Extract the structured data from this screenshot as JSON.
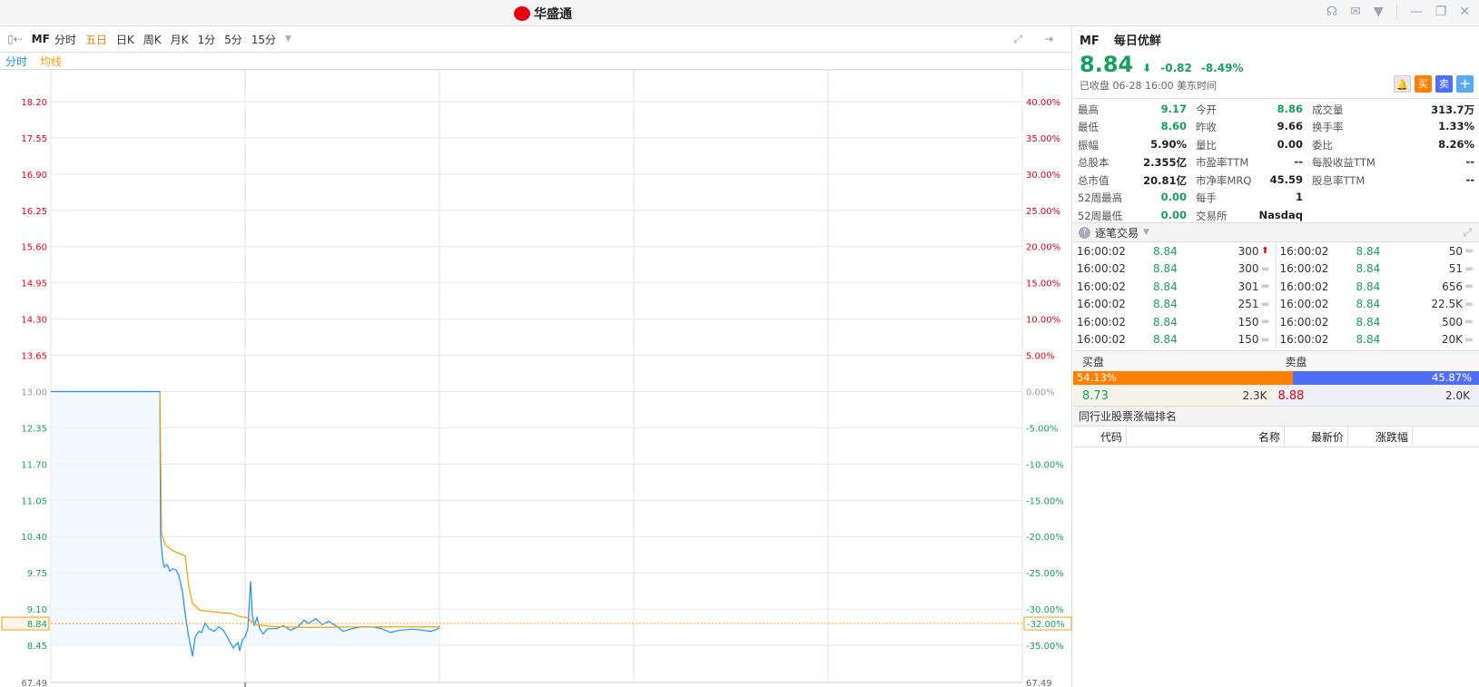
{
  "app": {
    "logo_text": "华盛通",
    "icons": [
      "headset-icon",
      "mail-icon",
      "shirt-icon",
      "minimize-icon",
      "restore-icon",
      "close-icon"
    ]
  },
  "toolbar": {
    "code": "MF",
    "tabs": [
      "分时",
      "五日",
      "日K",
      "周K",
      "月K",
      "1分",
      "5分",
      "15分"
    ],
    "active": "五日"
  },
  "legend": {
    "price": "分时",
    "avg": "均线"
  },
  "colors": {
    "up": "#e60012",
    "down": "#17a05d",
    "price_line": "#1890ff",
    "avg_line": "#f5a000",
    "buy": "#ff8000",
    "sell": "#4f6ef7"
  },
  "chart_data": {
    "type": "line",
    "days": 5,
    "left_ticks": [
      "18.20",
      "17.55",
      "16.90",
      "16.25",
      "15.60",
      "14.95",
      "14.30",
      "13.65",
      "13.00",
      "12.35",
      "11.70",
      "11.05",
      "10.40",
      "9.75",
      "9.10",
      "8.45"
    ],
    "right_ticks": [
      "40.00%",
      "35.00%",
      "30.00%",
      "25.00%",
      "20.00%",
      "15.00%",
      "10.00%",
      "5.00%",
      "0.00%",
      "-5.00%",
      "-10.00%",
      "-15.00%",
      "-20.00%",
      "-25.00%",
      "-30.00%",
      "-35.00%"
    ],
    "ylim": [
      8.45,
      18.2
    ],
    "base": 13.0,
    "current": {
      "price": "8.84",
      "pct": "-32.00%",
      "value": 8.84
    },
    "volume_label_left": "67.49",
    "volume_label_right": "67.49",
    "series": [
      {
        "name": "分时",
        "points": [
          [
            0,
            13.0
          ],
          [
            0.561,
            13.0
          ],
          [
            0.565,
            10.4
          ],
          [
            0.575,
            10.0
          ],
          [
            0.584,
            9.85
          ],
          [
            0.598,
            9.9
          ],
          [
            0.612,
            9.78
          ],
          [
            0.626,
            9.82
          ],
          [
            0.645,
            9.8
          ],
          [
            0.659,
            9.7
          ],
          [
            0.678,
            9.4
          ],
          [
            0.692,
            9.0
          ],
          [
            0.71,
            8.6
          ],
          [
            0.729,
            8.25
          ],
          [
            0.743,
            8.6
          ],
          [
            0.762,
            8.7
          ],
          [
            0.776,
            8.68
          ],
          [
            0.794,
            8.85
          ],
          [
            0.813,
            8.75
          ],
          [
            0.841,
            8.7
          ],
          [
            0.864,
            8.78
          ],
          [
            0.888,
            8.72
          ],
          [
            0.916,
            8.55
          ],
          [
            0.939,
            8.4
          ],
          [
            0.963,
            8.5
          ],
          [
            0.972,
            8.35
          ],
          [
            0.986,
            8.55
          ],
          [
            1.0,
            8.6
          ],
          [
            1.014,
            8.75
          ],
          [
            1.028,
            9.6
          ],
          [
            1.037,
            9.0
          ],
          [
            1.047,
            8.8
          ],
          [
            1.061,
            8.95
          ],
          [
            1.075,
            8.75
          ],
          [
            1.093,
            8.65
          ],
          [
            1.112,
            8.74
          ],
          [
            1.131,
            8.75
          ],
          [
            1.164,
            8.75
          ],
          [
            1.196,
            8.8
          ],
          [
            1.234,
            8.72
          ],
          [
            1.271,
            8.78
          ],
          [
            1.304,
            8.9
          ],
          [
            1.327,
            8.84
          ],
          [
            1.364,
            8.93
          ],
          [
            1.397,
            8.82
          ],
          [
            1.43,
            8.88
          ],
          [
            1.467,
            8.8
          ],
          [
            1.505,
            8.7
          ],
          [
            1.551,
            8.75
          ],
          [
            1.598,
            8.78
          ],
          [
            1.654,
            8.78
          ],
          [
            1.701,
            8.75
          ],
          [
            1.748,
            8.68
          ],
          [
            1.794,
            8.72
          ],
          [
            1.864,
            8.74
          ],
          [
            1.911,
            8.72
          ],
          [
            1.958,
            8.7
          ],
          [
            1.995,
            8.75
          ],
          [
            2.0,
            8.8
          ]
        ]
      },
      {
        "name": "均线",
        "points": [
          [
            0.561,
            13.0
          ],
          [
            0.57,
            10.45
          ],
          [
            0.589,
            10.25
          ],
          [
            0.626,
            10.15
          ],
          [
            0.692,
            10.05
          ],
          [
            0.71,
            9.5
          ],
          [
            0.729,
            9.2
          ],
          [
            0.766,
            9.08
          ],
          [
            0.86,
            9.04
          ],
          [
            0.93,
            9.02
          ],
          [
            0.977,
            8.96
          ],
          [
            1.009,
            8.95
          ],
          [
            1.033,
            8.88
          ],
          [
            1.061,
            8.82
          ],
          [
            1.126,
            8.79
          ],
          [
            1.196,
            8.78
          ],
          [
            1.327,
            8.77
          ],
          [
            1.607,
            8.78
          ],
          [
            2.0,
            8.78
          ]
        ]
      }
    ]
  },
  "quote": {
    "code": "MF",
    "name": "每日优鲜",
    "price": "8.84",
    "change": "-0.82",
    "pct": "-8.49%",
    "status": "已收盘 06-28 16:00 美东时间",
    "buttons": {
      "buy": "买",
      "sell": "卖",
      "add": "+"
    }
  },
  "stats": [
    [
      {
        "k": "最高",
        "v": "9.17",
        "g": true
      },
      {
        "k": "今开",
        "v": "8.86",
        "g": true
      },
      {
        "k": "成交量",
        "v": "313.7万"
      }
    ],
    [
      {
        "k": "最低",
        "v": "8.60",
        "g": true
      },
      {
        "k": "昨收",
        "v": "9.66"
      },
      {
        "k": "换手率",
        "v": "1.33%"
      }
    ],
    [
      {
        "k": "振幅",
        "v": "5.90%"
      },
      {
        "k": "量比",
        "v": "0.00"
      },
      {
        "k": "委比",
        "v": "8.26%"
      }
    ],
    [
      {
        "k": "总股本",
        "v": "2.355亿"
      },
      {
        "k": "市盈率TTM",
        "v": "--"
      },
      {
        "k": "每股收益TTM",
        "v": "--"
      }
    ],
    [
      {
        "k": "总市值",
        "v": "20.81亿"
      },
      {
        "k": "市净率MRQ",
        "v": "45.59"
      },
      {
        "k": "股息率TTM",
        "v": "--"
      }
    ],
    [
      {
        "k": "52周最高",
        "v": "0.00",
        "g": true
      },
      {
        "k": "每手",
        "v": "1"
      },
      {
        "k": "",
        "v": ""
      }
    ],
    [
      {
        "k": "52周最低",
        "v": "0.00",
        "g": true
      },
      {
        "k": "交易所",
        "v": "Nasdaq"
      },
      {
        "k": "",
        "v": ""
      }
    ]
  ],
  "trades": {
    "title": "逐笔交易",
    "left": [
      [
        "16:00:02",
        "8.84",
        "300",
        "up"
      ],
      [
        "16:00:02",
        "8.84",
        "300",
        "flat"
      ],
      [
        "16:00:02",
        "8.84",
        "301",
        "flat"
      ],
      [
        "16:00:02",
        "8.84",
        "251",
        "flat"
      ],
      [
        "16:00:02",
        "8.84",
        "150",
        "flat"
      ],
      [
        "16:00:02",
        "8.84",
        "150",
        "flat"
      ]
    ],
    "right": [
      [
        "16:00:02",
        "8.84",
        "50",
        "flat"
      ],
      [
        "16:00:02",
        "8.84",
        "51",
        "flat"
      ],
      [
        "16:00:02",
        "8.84",
        "656",
        "flat"
      ],
      [
        "16:00:02",
        "8.84",
        "22.5K",
        "flat"
      ],
      [
        "16:00:02",
        "8.84",
        "500",
        "flat"
      ],
      [
        "16:00:02",
        "8.84",
        "20K",
        "flat"
      ]
    ]
  },
  "orderbook": {
    "buy_label": "买盘",
    "sell_label": "卖盘",
    "buy_pct": "54.13%",
    "sell_pct": "45.87%",
    "buy_ratio": 54.13,
    "bid": "8.73",
    "bid_size": "2.3K",
    "ask": "8.88",
    "ask_size": "2.0K"
  },
  "peers": {
    "title": "同行业股票涨幅排名",
    "columns": [
      "代码",
      "名称",
      "最新价",
      "涨跌幅"
    ]
  }
}
